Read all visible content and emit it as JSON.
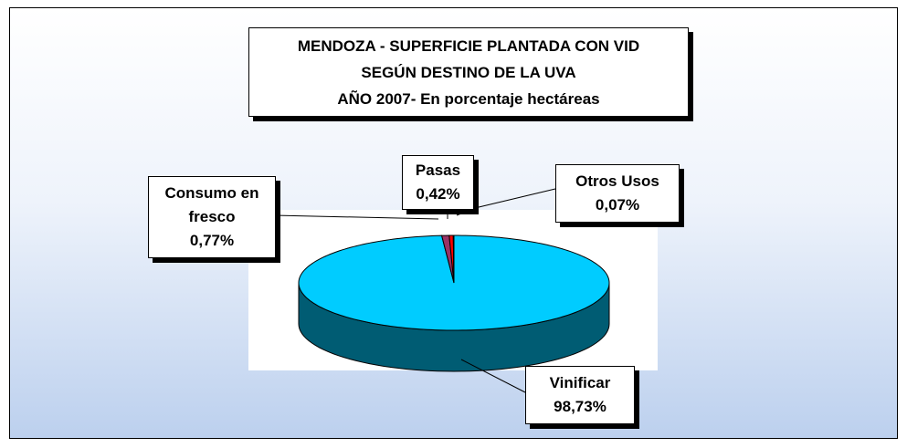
{
  "chart_data": {
    "type": "pie",
    "title": [
      "MENDOZA - SUPERFICIE PLANTADA CON VID",
      "SEGÚN DESTINO DE LA UVA",
      "AÑO 2007- En porcentaje hectáreas"
    ],
    "categories": [
      "Vinificar",
      "Consumo en fresco",
      "Pasas",
      "Otros Usos"
    ],
    "values": [
      98.73,
      0.77,
      0.42,
      0.07
    ],
    "value_labels": [
      "98,73%",
      "0,77%",
      "0,42%",
      "0,07%"
    ],
    "colors": [
      "#00ccff",
      "#993366",
      "#ff0000",
      "#ffff99"
    ],
    "three_d": true
  }
}
